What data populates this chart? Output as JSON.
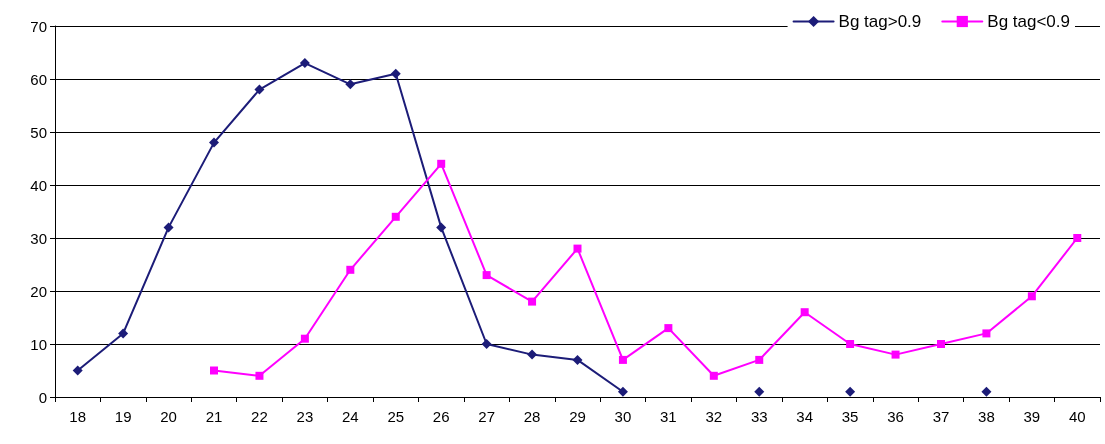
{
  "chart_data": {
    "type": "line",
    "categories": [
      "18",
      "19",
      "20",
      "21",
      "22",
      "23",
      "24",
      "25",
      "26",
      "27",
      "28",
      "29",
      "30",
      "31",
      "32",
      "33",
      "34",
      "35",
      "36",
      "37",
      "38",
      "39",
      "40"
    ],
    "series": [
      {
        "name": "Bg tag>0.9",
        "color": "#1c1c78",
        "marker": "diamond",
        "values": [
          5,
          12,
          32,
          48,
          58,
          63,
          59,
          61,
          32,
          10,
          8,
          7,
          1,
          null,
          null,
          1,
          null,
          1,
          null,
          null,
          1,
          null,
          null
        ]
      },
      {
        "name": "Bg tag<0.9",
        "color": "#ff00ff",
        "marker": "square",
        "values": [
          null,
          null,
          null,
          5,
          4,
          11,
          24,
          34,
          44,
          23,
          18,
          28,
          7,
          13,
          4,
          7,
          16,
          10,
          8,
          10,
          12,
          19,
          30
        ]
      }
    ],
    "ylim": [
      0,
      70
    ],
    "yticks": [
      0,
      10,
      20,
      30,
      40,
      50,
      60,
      70
    ],
    "grid": "y",
    "legend": "top right",
    "line_style": "solid"
  }
}
